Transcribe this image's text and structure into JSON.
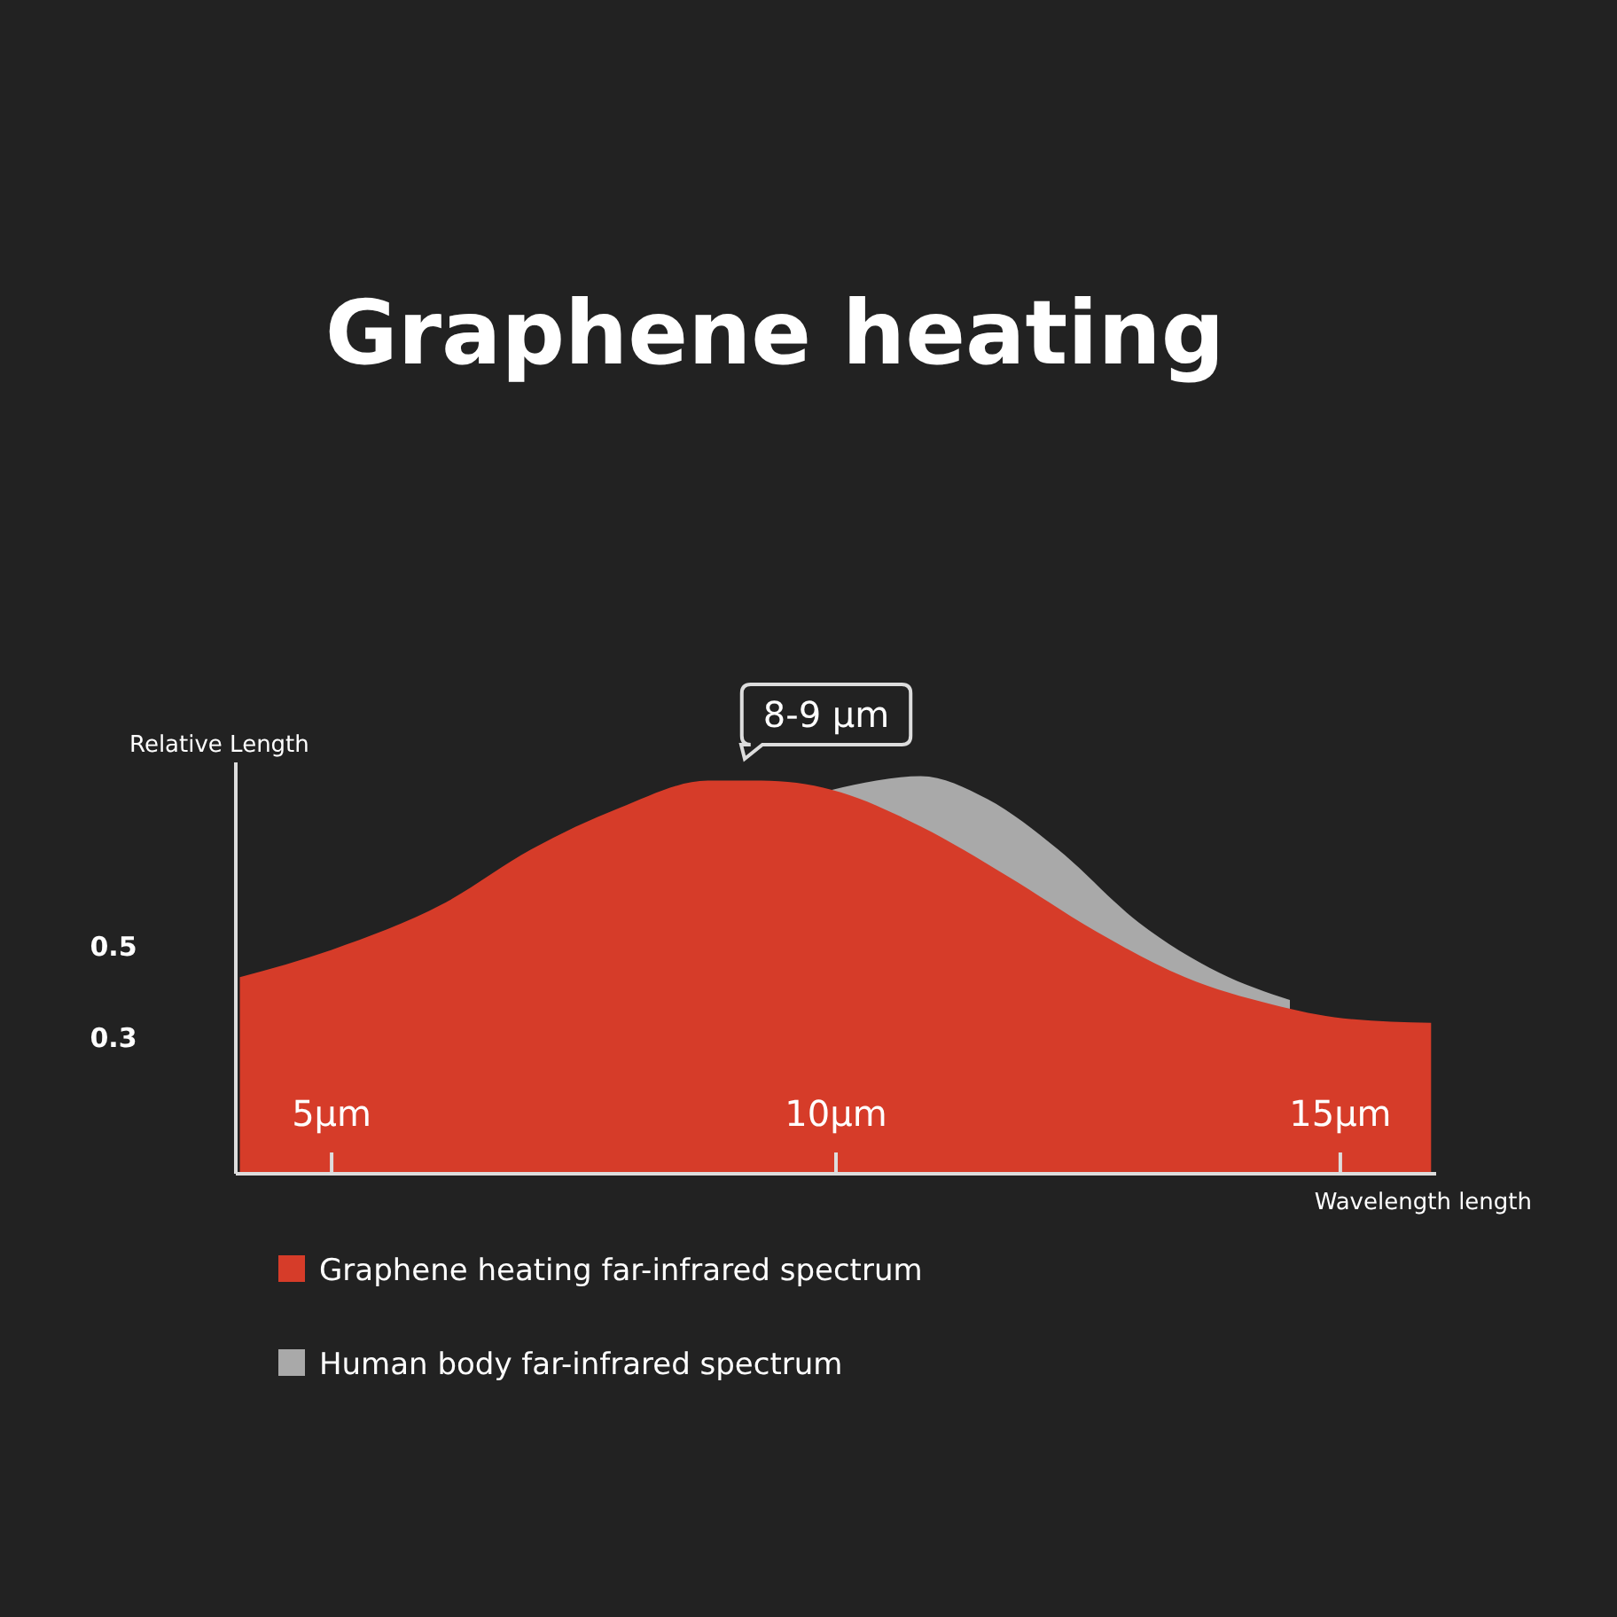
{
  "chart_data": {
    "type": "area",
    "title": "Graphene heating",
    "ylabel": "Relative Length",
    "xlabel": "Wavelength length",
    "xlim": [
      4.05,
      15.95
    ],
    "ylim": [
      0,
      0.9
    ],
    "xticks": [
      {
        "value": 5,
        "label": "5µm"
      },
      {
        "value": 10,
        "label": "10µm"
      },
      {
        "value": 15,
        "label": "15µm"
      }
    ],
    "yticks": [
      0.3,
      0.5
    ],
    "series": [
      {
        "name": "Human body far-infrared spectrum",
        "color": "#a9a9a9",
        "x": [
          9.96,
          10.4,
          10.84,
          11.5,
          12.2,
          13.0,
          13.8,
          14.5
        ],
        "values": [
          0.84,
          0.86,
          0.87,
          0.82,
          0.71,
          0.55,
          0.44,
          0.38
        ]
      },
      {
        "name": "Graphene heating far-infrared spectrum",
        "color": "#d63c29",
        "x": [
          4.09,
          5.0,
          6.1,
          6.98,
          7.85,
          8.73,
          9.26,
          9.96,
          10.84,
          11.71,
          12.58,
          13.46,
          14.33,
          15.03,
          15.9
        ],
        "values": [
          0.43,
          0.49,
          0.59,
          0.71,
          0.8,
          0.86,
          0.86,
          0.84,
          0.76,
          0.65,
          0.53,
          0.43,
          0.37,
          0.34,
          0.33
        ]
      }
    ],
    "annotations": [
      "8-9 µm"
    ],
    "legend": "bottom left"
  }
}
